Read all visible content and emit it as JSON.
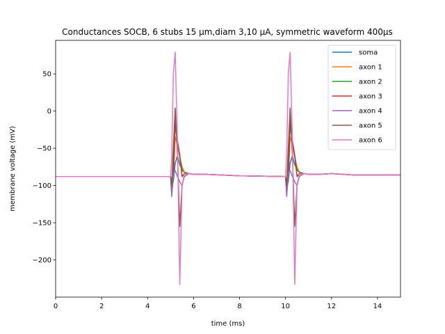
{
  "chart_data": {
    "type": "line",
    "title": "Conductances SOCB, 6 stubs 15 µm,diam 3,10 µA, symmetric waveform 400µs",
    "xlabel": "time (ms)",
    "ylabel": "membrane voltage (mV)",
    "xlim": [
      0,
      15
    ],
    "ylim": [
      -250,
      95
    ],
    "xticks": [
      0,
      2,
      4,
      6,
      8,
      10,
      12,
      14
    ],
    "yticks": [
      50,
      0,
      -50,
      -100,
      -150,
      -200
    ],
    "ytick_labels": [
      "50",
      "0",
      "−50",
      "−100",
      "−150",
      "−200"
    ],
    "legend_position": "top-right",
    "grid": false,
    "series": [
      {
        "name": "soma",
        "color": "#1f77b4",
        "x": [
          0,
          5.0,
          5.05,
          5.12,
          5.2,
          5.3,
          5.4,
          5.5,
          5.6,
          5.8,
          6.0,
          6.5,
          8,
          10.0,
          10.05,
          10.12,
          10.2,
          10.3,
          10.4,
          10.5,
          10.6,
          10.8,
          11.0,
          11.5,
          12,
          13,
          15
        ],
        "y": [
          -88,
          -88,
          -100,
          -95,
          -70,
          -60,
          -72,
          -78,
          -82,
          -84,
          -85,
          -85,
          -87,
          -88,
          -100,
          -95,
          -70,
          -60,
          -72,
          -78,
          -82,
          -84,
          -85,
          -85,
          -84,
          -86,
          -86
        ]
      },
      {
        "name": "axon 1",
        "color": "#ff7f0e",
        "x": [
          0,
          5.0,
          5.05,
          5.12,
          5.2,
          5.3,
          5.4,
          5.5,
          5.6,
          5.8,
          6.0,
          6.5,
          8,
          10.0,
          10.05,
          10.12,
          10.2,
          10.3,
          10.4,
          10.5,
          10.6,
          10.8,
          11.0,
          11.5,
          12,
          13,
          15
        ],
        "y": [
          -88,
          -88,
          -110,
          -90,
          -35,
          -45,
          -62,
          -75,
          -82,
          -84,
          -85,
          -85,
          -87,
          -88,
          -110,
          -90,
          -35,
          -45,
          -62,
          -75,
          -82,
          -84,
          -85,
          -85,
          -84,
          -86,
          -86
        ]
      },
      {
        "name": "axon 2",
        "color": "#2ca02c",
        "x": [
          0,
          5.0,
          5.05,
          5.12,
          5.2,
          5.3,
          5.4,
          5.5,
          5.6,
          5.8,
          6.0,
          6.5,
          8,
          10.0,
          10.05,
          10.12,
          10.2,
          10.3,
          10.4,
          10.5,
          10.6,
          10.8,
          11.0,
          11.5,
          12,
          13,
          15
        ],
        "y": [
          -88,
          -88,
          -110,
          -90,
          -20,
          -40,
          -60,
          -80,
          -82,
          -84,
          -85,
          -85,
          -87,
          -88,
          -110,
          -90,
          -20,
          -40,
          -60,
          -80,
          -82,
          -84,
          -85,
          -85,
          -84,
          -86,
          -86
        ]
      },
      {
        "name": "axon 3",
        "color": "#d62728",
        "x": [
          0,
          5.0,
          5.05,
          5.12,
          5.2,
          5.3,
          5.4,
          5.5,
          5.6,
          5.8,
          6.0,
          6.5,
          8,
          10.0,
          10.05,
          10.12,
          10.2,
          10.3,
          10.4,
          10.5,
          10.6,
          10.8,
          11.0,
          11.5,
          12,
          13,
          15
        ],
        "y": [
          -88,
          -88,
          -112,
          -80,
          -10,
          -40,
          -60,
          -88,
          -84,
          -84,
          -85,
          -85,
          -87,
          -88,
          -112,
          -80,
          -10,
          -40,
          -60,
          -88,
          -84,
          -84,
          -85,
          -85,
          -84,
          -86,
          -86
        ]
      },
      {
        "name": "axon 4",
        "color": "#9467bd",
        "x": [
          0,
          5.0,
          5.05,
          5.12,
          5.2,
          5.3,
          5.4,
          5.5,
          5.6,
          5.8,
          6.0,
          6.5,
          8,
          10.0,
          10.05,
          10.12,
          10.2,
          10.3,
          10.4,
          10.5,
          10.6,
          10.8,
          11.0,
          11.5,
          12,
          13,
          15
        ],
        "y": [
          -88,
          -88,
          -115,
          -82,
          -80,
          -88,
          -95,
          -100,
          -88,
          -84,
          -85,
          -85,
          -87,
          -88,
          -115,
          -82,
          -80,
          -88,
          -95,
          -100,
          -88,
          -84,
          -85,
          -85,
          -84,
          -86,
          -86
        ]
      },
      {
        "name": "axon 5",
        "color": "#8c564b",
        "x": [
          0,
          5.0,
          5.05,
          5.12,
          5.2,
          5.3,
          5.4,
          5.5,
          5.6,
          5.8,
          6.0,
          6.5,
          8,
          10.0,
          10.05,
          10.12,
          10.2,
          10.3,
          10.4,
          10.5,
          10.6,
          10.8,
          11.0,
          11.5,
          12,
          13,
          15
        ],
        "y": [
          -88,
          -88,
          -100,
          -50,
          4,
          -60,
          -155,
          -100,
          -85,
          -84,
          -85,
          -85,
          -87,
          -88,
          -100,
          -50,
          4,
          -60,
          -155,
          -100,
          -85,
          -84,
          -85,
          -85,
          -84,
          -86,
          -86
        ]
      },
      {
        "name": "axon 6",
        "color": "#e377c2",
        "x": [
          0,
          5.0,
          5.05,
          5.12,
          5.2,
          5.3,
          5.4,
          5.5,
          5.6,
          5.8,
          6.0,
          6.5,
          8,
          10.0,
          10.05,
          10.12,
          10.2,
          10.3,
          10.4,
          10.5,
          10.6,
          10.8,
          11.0,
          11.5,
          12,
          13,
          15
        ],
        "y": [
          -88,
          -88,
          -60,
          50,
          79,
          -40,
          -233,
          -100,
          -85,
          -84,
          -85,
          -85,
          -87,
          -88,
          -60,
          50,
          79,
          -40,
          -233,
          -100,
          -85,
          -84,
          -85,
          -85,
          -84,
          -86,
          -86
        ]
      }
    ]
  }
}
